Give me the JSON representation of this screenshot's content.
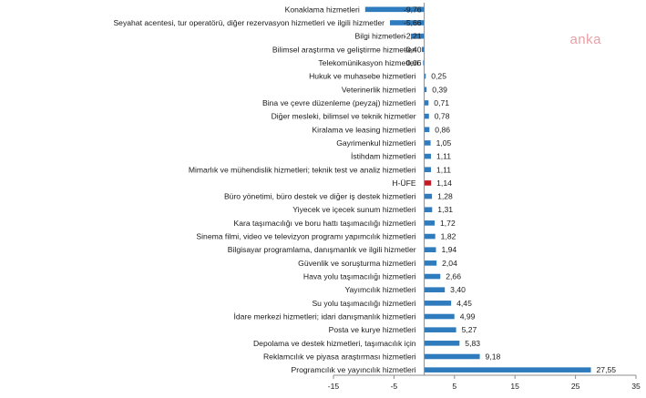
{
  "watermark": "anka",
  "colors": {
    "bar": "#2e7bbd",
    "highlight": "#c21b23",
    "axis": "#8c8c8c",
    "watermark": "#e8a0a6"
  },
  "chart_data": {
    "type": "bar",
    "orientation": "horizontal",
    "title": "",
    "xlabel": "",
    "ylabel": "",
    "xlim": [
      -15,
      35
    ],
    "xticks": [
      -15,
      -5,
      5,
      15,
      25,
      35
    ],
    "xtick_labels": [
      "-15",
      "-5",
      "5",
      "15",
      "25",
      "35"
    ],
    "categories": [
      "Konaklama hizmetleri",
      "Seyahat acentesi, tur operatörü, diğer rezervasyon hizmetleri ve ilgili hizmetler",
      "Bilgi hizmetleri",
      "Bilimsel araştırma ve geliştirme hizmetleri",
      "Telekomünikasyon hizmetleri",
      "Hukuk ve muhasebe hizmetleri",
      "Veterinerlik hizmetleri",
      "Bina ve çevre düzenleme (peyzaj) hizmetleri",
      "Diğer mesleki, bilimsel ve teknik hizmetler",
      "Kiralama ve leasing hizmetleri",
      "Gayrimenkul hizmetleri",
      "İstihdam hizmetleri",
      "Mimarlık ve mühendislik hizmetleri; teknik test ve analiz hizmetleri",
      "H-ÜFE",
      "Büro yönetimi, büro destek ve diğer iş destek hizmetleri",
      "Yiyecek ve içecek sunum hizmetleri",
      "Kara taşımacılığı ve boru hattı taşımacılığı hizmetleri",
      "Sinema filmi, video ve televizyon programı yapımcılık hizmetleri",
      "Bilgisayar programlama, danışmanlık ve ilgili hizmetler",
      "Güvenlik ve soruşturma hizmetleri",
      "Hava yolu taşımacılığı hizmetleri",
      "Yayımcılık hizmetleri",
      "Su yolu taşımacılığı hizmetleri",
      "İdare merkezi hizmetleri; idari danışmanlık hizmetleri",
      "Posta ve kurye hizmetleri",
      "Depolama ve destek hizmetleri, taşımacılık için",
      "Reklamcılık ve piyasa araştırması hizmetleri",
      "Programcılık ve yayıncılık hizmetleri"
    ],
    "values": [
      -9.76,
      -5.66,
      -2.21,
      -0.4,
      -0.06,
      0.25,
      0.39,
      0.71,
      0.78,
      0.86,
      1.05,
      1.11,
      1.11,
      1.14,
      1.28,
      1.31,
      1.72,
      1.82,
      1.94,
      2.04,
      2.66,
      3.4,
      4.45,
      4.99,
      5.27,
      5.83,
      9.18,
      27.55
    ],
    "value_labels": [
      "-9,76",
      "-5,66",
      "-2,21",
      "-0,40",
      "-0,06",
      "0,25",
      "0,39",
      "0,71",
      "0,78",
      "0,86",
      "1,05",
      "1,11",
      "1,11",
      "1,14",
      "1,28",
      "1,31",
      "1,72",
      "1,82",
      "1,94",
      "2,04",
      "2,66",
      "3,40",
      "4,45",
      "4,99",
      "5,27",
      "5,83",
      "9,18",
      "27,55"
    ],
    "highlight_category": "H-ÜFE",
    "grid": false,
    "legend": "none"
  }
}
